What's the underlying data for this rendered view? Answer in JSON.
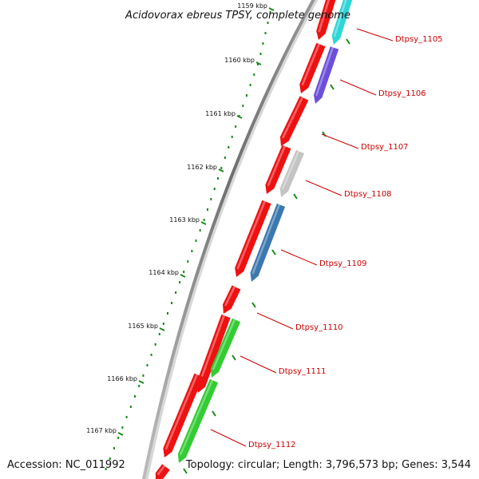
{
  "title": "Acidovorax ebreus TPSY, complete genome",
  "accession": "Accession: NC_011992",
  "topology": "Topology: circular; Length: 3,796,573 bp; Genes: 3,544",
  "scale_labels": [
    "1159 kbp",
    "1160 kbp",
    "1161 kbp",
    "1162 kbp",
    "1163 kbp",
    "1164 kbp",
    "1165 kbp",
    "1166 kbp",
    "1167 kbp"
  ],
  "colors": {
    "backbone": "#8a8a8a",
    "forward_gene": "#ee1111",
    "ticks": "#1a8a1a",
    "label": "#cc0000"
  },
  "genes": [
    {
      "locus": "Dtpsy_1105",
      "color": "#2fd6d6"
    },
    {
      "locus": "Dtpsy_1106",
      "color": "#6b4fd8"
    },
    {
      "locus": "Dtpsy_1107",
      "color": null
    },
    {
      "locus": "Dtpsy_1108",
      "color": "#c4c4c4"
    },
    {
      "locus": "Dtpsy_1109",
      "color": "#3c78b0"
    },
    {
      "locus": "Dtpsy_1110",
      "color": null
    },
    {
      "locus": "Dtpsy_1111",
      "color": "#33cc33"
    },
    {
      "locus": "Dtpsy_1112",
      "color": "#33cc33"
    }
  ]
}
